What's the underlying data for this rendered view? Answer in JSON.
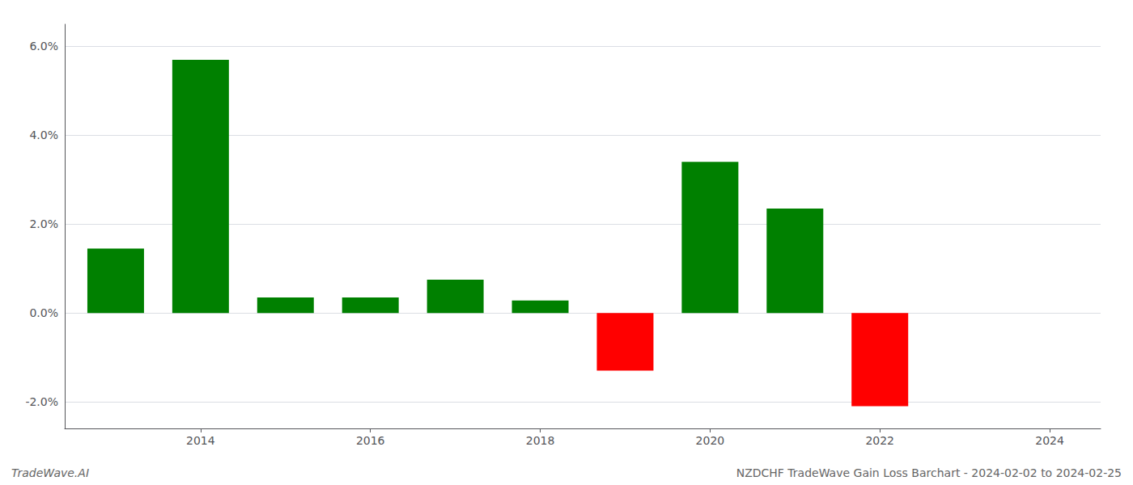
{
  "chart_data": {
    "type": "bar",
    "x": [
      2013,
      2014,
      2015,
      2016,
      2017,
      2018,
      2019,
      2020,
      2021,
      2022,
      2023
    ],
    "values": [
      0.0145,
      0.057,
      0.0035,
      0.0035,
      0.0075,
      0.0028,
      -0.013,
      0.034,
      0.0235,
      -0.021,
      0.0
    ],
    "colors": [
      "#008000",
      "#008000",
      "#008000",
      "#008000",
      "#008000",
      "#008000",
      "#ff0000",
      "#008000",
      "#008000",
      "#ff0000",
      "#ff0000"
    ],
    "xlim": [
      2012.4,
      2024.6
    ],
    "xticks": [
      2014,
      2016,
      2018,
      2020,
      2022,
      2024
    ],
    "ylim": [
      -0.026,
      0.065
    ],
    "yticks": [
      {
        "value": -0.02,
        "label": "-2.0%"
      },
      {
        "value": 0.0,
        "label": "0.0%"
      },
      {
        "value": 0.02,
        "label": "2.0%"
      },
      {
        "value": 0.04,
        "label": "4.0%"
      },
      {
        "value": 0.06,
        "label": "6.0%"
      }
    ],
    "grid": true,
    "annotations": [
      "TradeWave.AI",
      "NZDCHF TradeWave Gain Loss Barchart - 2024-02-02 to 2024-02-25"
    ]
  }
}
